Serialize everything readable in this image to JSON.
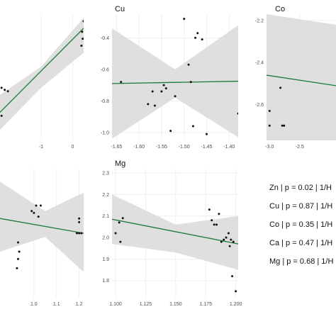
{
  "chart_data": [
    {
      "panel": "first",
      "type": "scatter",
      "title": "",
      "xlim": [
        -2.3,
        0.35
      ],
      "ylim": [
        -1.6,
        0.2
      ],
      "x_ticks": [
        -1,
        0
      ],
      "x_tick_labels": [
        "-1",
        "0"
      ],
      "y_ticks": [],
      "y_tick_labels": [],
      "x": [
        -2.25,
        -2.15,
        -2.05,
        -2.25,
        0.35,
        0.3,
        0.32,
        0.28
      ],
      "y": [
        -0.85,
        -0.88,
        -0.9,
        -1.25,
        0.1,
        -0.05,
        -0.15,
        -0.25
      ],
      "fit": {
        "x": [
          -2.3,
          0.35
        ],
        "y": [
          -1.2,
          0.0
        ]
      },
      "band": {
        "x": [
          -2.3,
          -1.0,
          0.35
        ],
        "upper": [
          -0.95,
          -0.55,
          0.15
        ],
        "lower": [
          -1.45,
          -0.85,
          -0.35
        ]
      }
    },
    {
      "panel": "Cu",
      "type": "scatter",
      "title": "Cu",
      "xlim": [
        -1.66,
        -1.38
      ],
      "ylim": [
        -1.05,
        -0.25
      ],
      "x_ticks": [
        -1.65,
        -1.6,
        -1.55,
        -1.5,
        -1.45,
        -1.4
      ],
      "x_tick_labels": [
        "-1.65",
        "-1.60",
        "-1.55",
        "-1.50",
        "-1.45",
        "-1.40"
      ],
      "y_ticks": [
        -0.4,
        -0.6,
        -0.8,
        -1.0
      ],
      "y_tick_labels": [
        "-0.4",
        "-0.6",
        "-0.8",
        "-1.0"
      ],
      "x": [
        -1.64,
        -1.58,
        -1.57,
        -1.565,
        -1.55,
        -1.545,
        -1.54,
        -1.53,
        -1.52,
        -1.5,
        -1.49,
        -1.485,
        -1.48,
        -1.475,
        -1.47,
        -1.46,
        -1.45,
        -1.38
      ],
      "y": [
        -0.68,
        -0.82,
        -0.74,
        -0.83,
        -0.74,
        -0.7,
        -0.72,
        -0.99,
        -0.77,
        -0.28,
        -0.57,
        -0.68,
        -0.96,
        -0.4,
        -0.37,
        -0.41,
        -1.01,
        -0.88
      ],
      "fit": {
        "x": [
          -1.66,
          -1.38
        ],
        "y": [
          -0.69,
          -0.675
        ]
      },
      "band": {
        "x": [
          -1.66,
          -1.52,
          -1.38
        ],
        "upper": [
          -0.34,
          -0.6,
          -0.32
        ],
        "lower": [
          -1.04,
          -0.78,
          -1.03
        ]
      }
    },
    {
      "panel": "Co",
      "type": "scatter",
      "title": "Co",
      "xlim": [
        -3.05,
        -1.9
      ],
      "ylim": [
        -2.77,
        -2.17
      ],
      "x_ticks": [
        -3.0,
        -2.5
      ],
      "x_tick_labels": [
        "-3.0",
        "-2.5"
      ],
      "y_ticks": [
        -2.2,
        -2.4,
        -2.6
      ],
      "y_tick_labels": [
        "-2.2",
        "-2.4",
        "-2.6"
      ],
      "x": [
        -3.0,
        -3.0,
        -2.82,
        -2.79,
        -2.76
      ],
      "y": [
        -2.63,
        -2.7,
        -2.52,
        -2.7,
        -2.7
      ],
      "fit": {
        "x": [
          -3.05,
          -1.9
        ],
        "y": [
          -2.46,
          -2.51
        ]
      },
      "band": {
        "x": [
          -3.05,
          -1.9
        ],
        "upper": [
          -2.17,
          -2.22
        ],
        "lower": [
          -2.77,
          -2.81
        ]
      }
    },
    {
      "panel": "Ca",
      "type": "scatter",
      "title": "",
      "xlim": [
        0.85,
        1.22
      ],
      "ylim": [
        1.6,
        2.3
      ],
      "x_ticks": [
        1.0,
        1.1,
        1.2
      ],
      "x_tick_labels": [
        "1.0",
        "1.1",
        "1.2"
      ],
      "y_ticks": [],
      "y_tick_labels": [],
      "x": [
        0.99,
        1.0,
        1.01,
        1.02,
        1.03,
        0.93,
        0.935,
        0.93,
        0.925,
        1.2,
        1.2,
        1.19,
        1.2,
        1.21
      ],
      "y": [
        2.07,
        2.06,
        2.1,
        2.04,
        2.1,
        1.9,
        1.85,
        1.81,
        1.76,
        2.03,
        2.01,
        1.95,
        1.95,
        1.95
      ],
      "fit": {
        "x": [
          0.85,
          1.22
        ],
        "y": [
          2.03,
          1.95
        ]
      },
      "band": {
        "x": [
          0.85,
          1.05,
          1.22
        ],
        "upper": [
          2.23,
          2.07,
          2.17
        ],
        "lower": [
          1.85,
          1.93,
          1.74
        ]
      }
    },
    {
      "panel": "Mg",
      "type": "scatter",
      "title": "Mg",
      "xlim": [
        1.097,
        1.202
      ],
      "ylim": [
        1.72,
        2.32
      ],
      "x_ticks": [
        1.1,
        1.125,
        1.15,
        1.175,
        1.2
      ],
      "x_tick_labels": [
        "1.100",
        "1.125",
        "1.150",
        "1.175",
        "1.200"
      ],
      "y_ticks": [
        2.3,
        2.2,
        2.1,
        2.0,
        1.9,
        1.8
      ],
      "y_tick_labels": [
        "2.3",
        "2.2",
        "2.1",
        "2.0",
        "1.9",
        "1.8"
      ],
      "x": [
        1.1,
        1.103,
        1.104,
        1.106,
        1.178,
        1.18,
        1.182,
        1.184,
        1.186,
        1.188,
        1.19,
        1.192,
        1.194,
        1.195,
        1.196,
        1.197,
        1.198,
        1.2
      ],
      "y": [
        2.02,
        2.07,
        1.98,
        2.09,
        2.13,
        2.08,
        2.06,
        2.06,
        2.11,
        1.98,
        1.99,
        2.0,
        2.02,
        1.96,
        1.99,
        1.82,
        1.98,
        1.75
      ],
      "fit": {
        "x": [
          1.097,
          1.202
        ],
        "y": [
          2.085,
          1.97
        ]
      },
      "band": {
        "x": [
          1.097,
          1.15,
          1.202
        ],
        "upper": [
          2.2,
          2.06,
          2.1
        ],
        "lower": [
          1.97,
          1.93,
          1.85
        ]
      }
    }
  ],
  "legend": {
    "rows": [
      {
        "name": "Zn",
        "p": "0.02",
        "text": "Zn | p = 0.02 | 1/H"
      },
      {
        "name": "Cu",
        "p": "0.87",
        "text": "Cu | p = 0.87 | 1/H"
      },
      {
        "name": "Co",
        "p": "0.35",
        "text": "Co | p = 0.35 | 1/H"
      },
      {
        "name": "Ca",
        "p": "0.47",
        "text": "Ca | p = 0.47 | 1/H"
      },
      {
        "name": "Mg",
        "p": "0.68",
        "text": "Mg | p = 0.68 | 1/H"
      }
    ]
  },
  "colors": {
    "fit_line": "#1b7a3a",
    "band": "#d9d9d9",
    "points": "#111111"
  }
}
